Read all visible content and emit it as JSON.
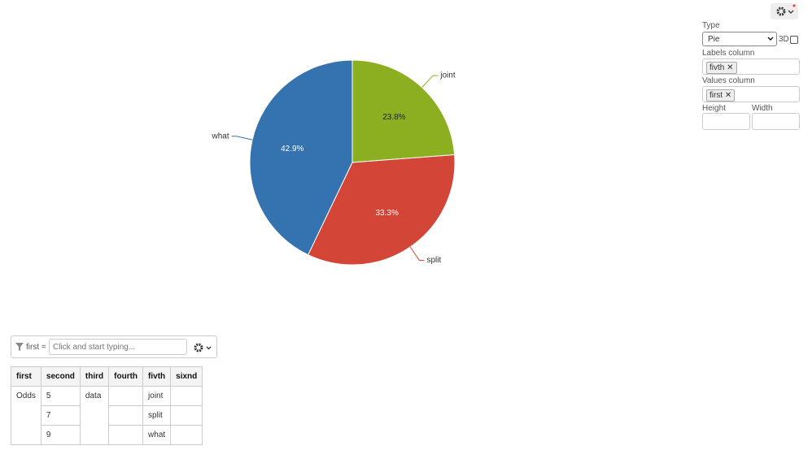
{
  "chart_data": {
    "type": "pie",
    "categories": [
      "joint",
      "split",
      "what"
    ],
    "values": [
      23.8,
      33.3,
      42.9
    ],
    "value_labels": [
      "23.8%",
      "33.3%",
      "42.9%"
    ],
    "colors": [
      "#8caf22",
      "#d34536",
      "#3472b0"
    ]
  },
  "settings": {
    "type_label": "Type",
    "type_value": "Pie",
    "three_d_label": "3D",
    "labels_column_label": "Labels column",
    "labels_column_value": "fivth",
    "values_column_label": "Values column",
    "values_column_value": "first",
    "height_label": "Height",
    "width_label": "Width"
  },
  "filter": {
    "column": "first =",
    "placeholder": "Click and start typing..."
  },
  "table": {
    "headers": [
      "first",
      "second",
      "third",
      "fourth",
      "fivth",
      "sixnd"
    ],
    "rows": [
      [
        "Odds",
        5,
        "data",
        null,
        "joint",
        null
      ],
      [
        null,
        7,
        null,
        null,
        "split",
        null
      ],
      [
        null,
        9,
        null,
        null,
        "what",
        null
      ]
    ]
  }
}
